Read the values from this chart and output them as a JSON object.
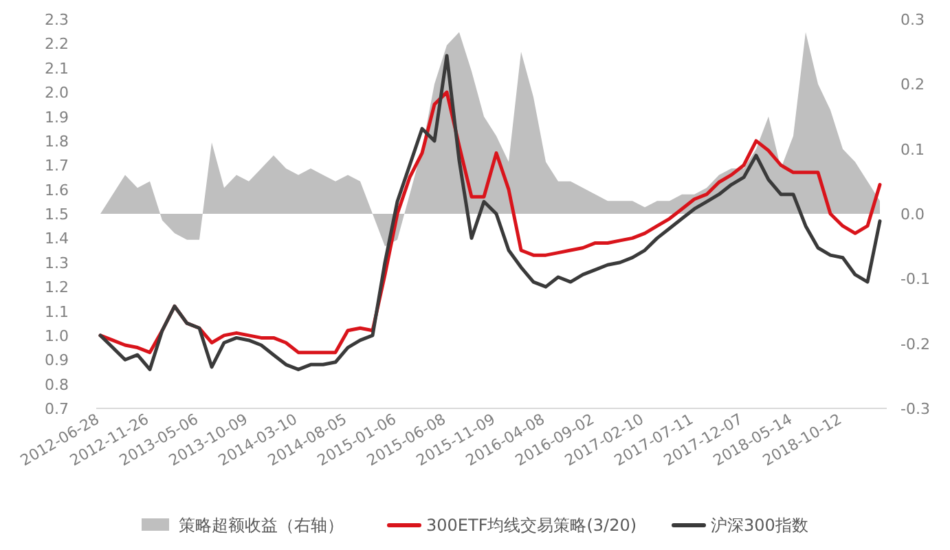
{
  "chart_data": {
    "type": "line",
    "categories": [
      "2012-06-28",
      null,
      null,
      null,
      "2012-11-26",
      null,
      null,
      null,
      "2013-05-06",
      null,
      null,
      null,
      "2013-10-09",
      null,
      null,
      null,
      "2014-03-10",
      null,
      null,
      null,
      "2014-08-05",
      null,
      null,
      null,
      "2015-01-06",
      null,
      null,
      null,
      "2015-06-08",
      null,
      null,
      null,
      "2015-11-09",
      null,
      null,
      null,
      "2016-04-08",
      null,
      null,
      null,
      "2016-09-02",
      null,
      null,
      null,
      "2017-02-10",
      null,
      null,
      null,
      "2017-07-11",
      null,
      null,
      null,
      "2017-12-07",
      null,
      null,
      null,
      "2018-05-14",
      null,
      null,
      null,
      "2018-10-12",
      null,
      null,
      null
    ],
    "series": [
      {
        "name": "策略超额收益（右轴）",
        "type": "area",
        "axis": "y2",
        "color": "#bfbfbf",
        "values": [
          0.0,
          0.03,
          0.06,
          0.04,
          0.05,
          -0.01,
          -0.03,
          -0.04,
          -0.04,
          0.11,
          0.04,
          0.06,
          0.05,
          0.07,
          0.09,
          0.07,
          0.06,
          0.07,
          0.06,
          0.05,
          0.06,
          0.05,
          0.0,
          -0.05,
          -0.04,
          0.03,
          0.1,
          0.2,
          0.26,
          0.28,
          0.22,
          0.15,
          0.12,
          0.08,
          0.25,
          0.18,
          0.08,
          0.05,
          0.05,
          0.04,
          0.03,
          0.02,
          0.02,
          0.02,
          0.01,
          0.02,
          0.02,
          0.03,
          0.03,
          0.04,
          0.06,
          0.07,
          0.07,
          0.1,
          0.15,
          0.07,
          0.12,
          0.28,
          0.2,
          0.16,
          0.1,
          0.08,
          0.05,
          0.02
        ]
      },
      {
        "name": "300ETF均线交易策略(3/20)",
        "color": "#d9141b",
        "values": [
          1.0,
          0.98,
          0.96,
          0.95,
          0.93,
          1.02,
          1.12,
          1.05,
          1.03,
          0.97,
          1.0,
          1.01,
          1.0,
          0.99,
          0.99,
          0.97,
          0.93,
          0.93,
          0.93,
          0.93,
          1.02,
          1.03,
          1.02,
          1.25,
          1.5,
          1.65,
          1.75,
          1.95,
          2.0,
          1.78,
          1.57,
          1.57,
          1.75,
          1.6,
          1.35,
          1.33,
          1.33,
          1.34,
          1.35,
          1.36,
          1.38,
          1.38,
          1.39,
          1.4,
          1.42,
          1.45,
          1.48,
          1.52,
          1.56,
          1.58,
          1.63,
          1.66,
          1.7,
          1.8,
          1.76,
          1.7,
          1.67,
          1.67,
          1.67,
          1.5,
          1.45,
          1.42,
          1.45,
          1.62
        ]
      },
      {
        "name": "沪深300指数",
        "color": "#3a3a3a",
        "values": [
          1.0,
          0.95,
          0.9,
          0.92,
          0.86,
          1.02,
          1.12,
          1.05,
          1.03,
          0.87,
          0.97,
          0.99,
          0.98,
          0.96,
          0.92,
          0.88,
          0.86,
          0.88,
          0.88,
          0.89,
          0.95,
          0.98,
          1.0,
          1.3,
          1.55,
          1.7,
          1.85,
          1.8,
          2.15,
          1.72,
          1.4,
          1.55,
          1.5,
          1.35,
          1.28,
          1.22,
          1.2,
          1.24,
          1.22,
          1.25,
          1.27,
          1.29,
          1.3,
          1.32,
          1.35,
          1.4,
          1.44,
          1.48,
          1.52,
          1.55,
          1.58,
          1.62,
          1.65,
          1.74,
          1.64,
          1.58,
          1.58,
          1.45,
          1.36,
          1.33,
          1.32,
          1.25,
          1.22,
          1.47
        ]
      }
    ],
    "ylim": [
      0.7,
      2.3
    ],
    "yticks": [
      0.7,
      0.8,
      0.9,
      {
        "value": 1,
        "label": "1.0"
      },
      1.1,
      1.2,
      1.3,
      1.4,
      1.5,
      1.6,
      1.7,
      1.8,
      1.9,
      {
        "value": 2,
        "label": "2.0"
      },
      2.1,
      2.2,
      2.3
    ],
    "y2lim": [
      -0.3,
      0.3
    ],
    "y2ticks": [
      {
        "value": -0.3,
        "label": "-0.3"
      },
      {
        "value": -0.2,
        "label": "-0.2"
      },
      {
        "value": -0.1,
        "label": "-0.1"
      },
      {
        "value": 0,
        "label": "0.0"
      },
      0.1,
      0.2,
      0.3
    ],
    "legend": "bottom"
  }
}
